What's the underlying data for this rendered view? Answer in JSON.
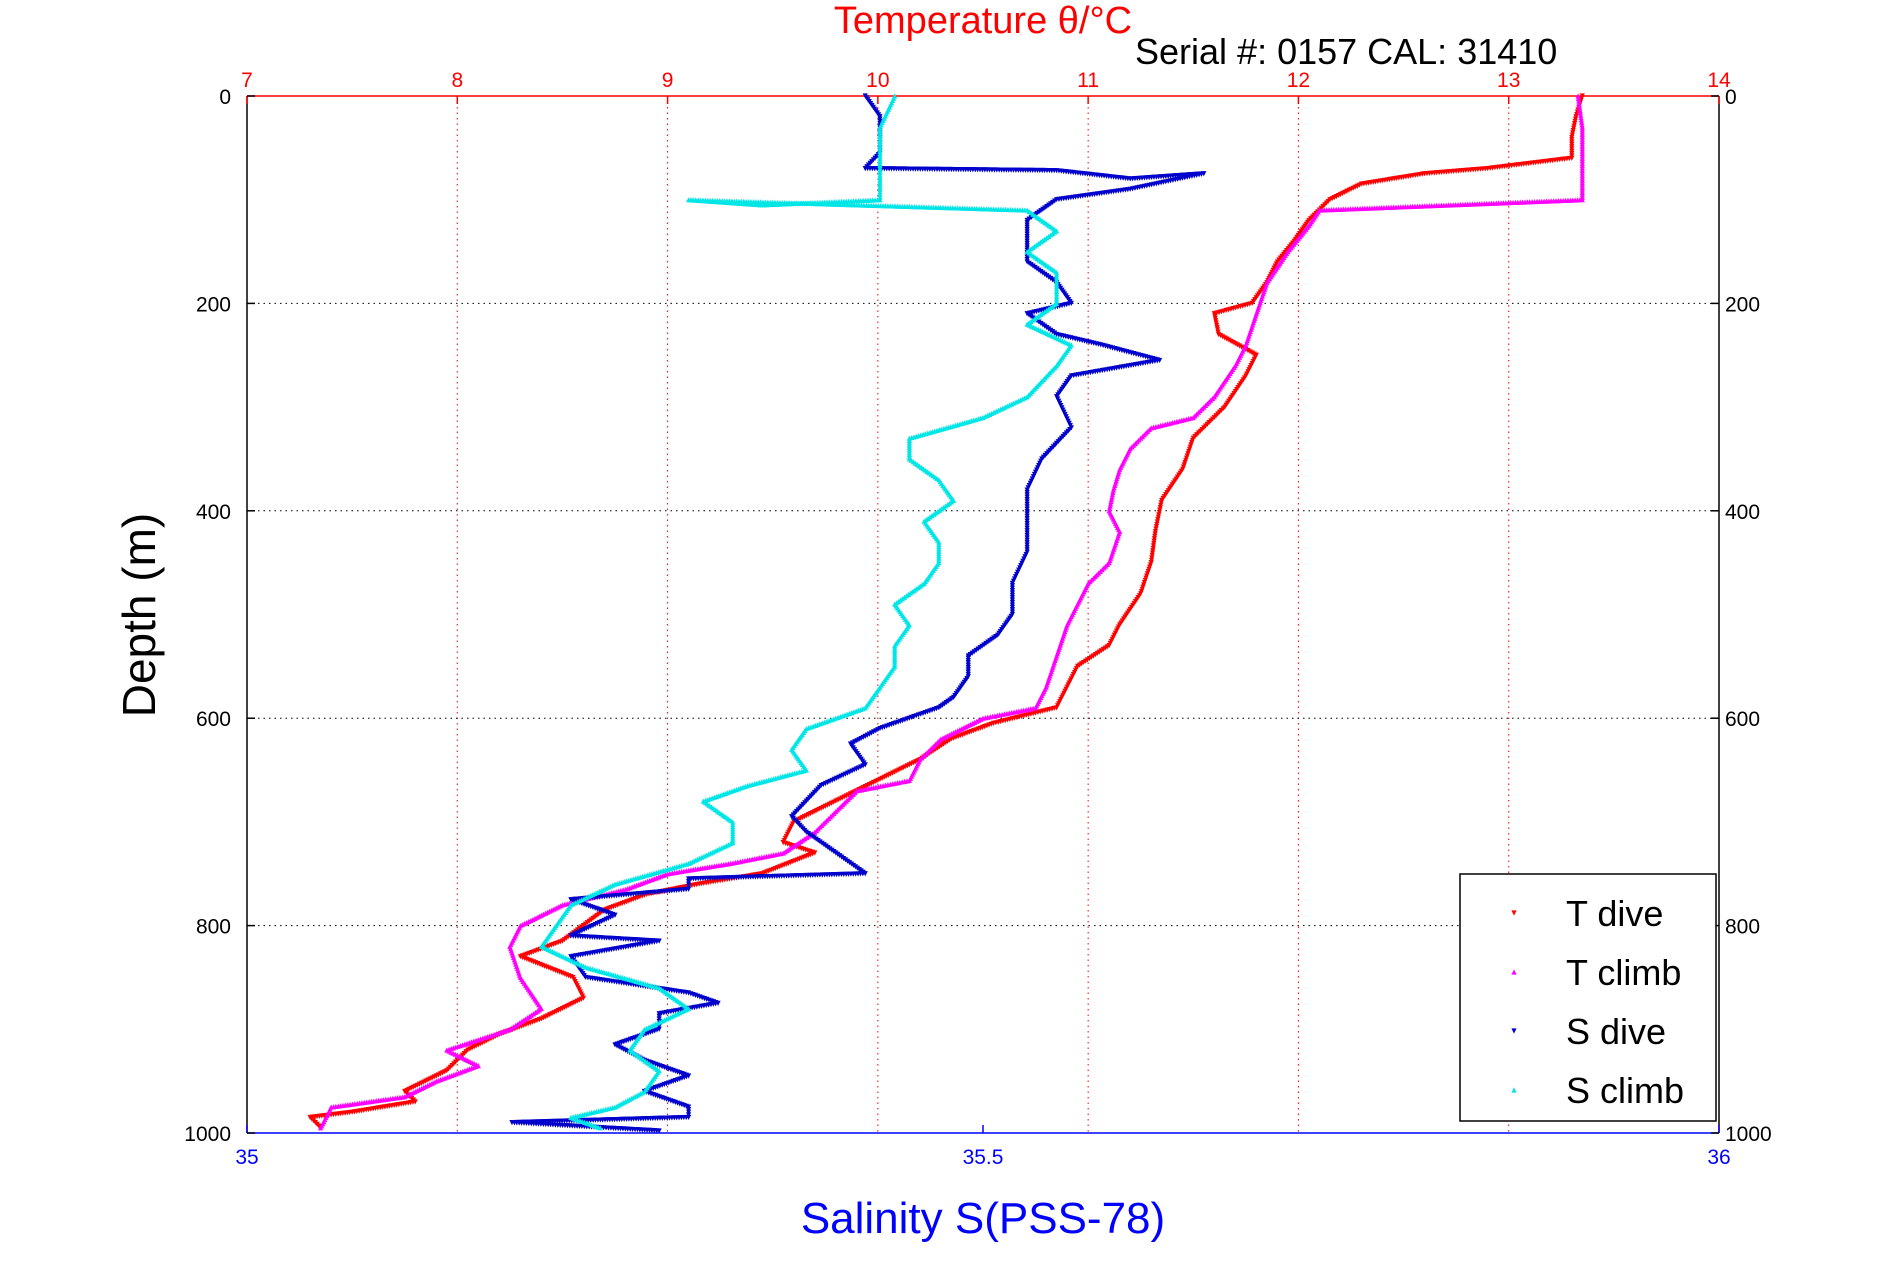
{
  "chart_data": {
    "type": "scatter",
    "title_top": "Temperature θ/°C",
    "serial_text": "Serial #: 0157  CAL: 31410",
    "xlabel_bottom": "Salinity S(PSS-78)",
    "ylabel": "Depth (m)",
    "colors": {
      "temperature_axis": "#ff0000",
      "salinity_axis": "#0000ff",
      "T_dive": "#ff0000",
      "T_climb": "#ff00ff",
      "S_dive": "#0000cc",
      "S_climb": "#00e5e5"
    },
    "temperature_axis": {
      "range": [
        7,
        14
      ],
      "ticks": [
        "7",
        "8",
        "9",
        "10",
        "11",
        "12",
        "13",
        "14"
      ]
    },
    "salinity_axis": {
      "range": [
        35,
        36
      ],
      "ticks": [
        "35",
        "35.5",
        "36"
      ]
    },
    "depth_axis": {
      "range": [
        0,
        1000
      ],
      "ticks": [
        "0",
        "200",
        "400",
        "600",
        "800",
        "1000"
      ]
    },
    "legend": [
      "T dive",
      "T climb",
      "S dive",
      "S climb"
    ],
    "series": [
      {
        "name": "T dive",
        "axis": "temperature",
        "points": [
          [
            13.35,
            0
          ],
          [
            13.32,
            20
          ],
          [
            13.3,
            40
          ],
          [
            13.3,
            60
          ],
          [
            12.9,
            70
          ],
          [
            12.6,
            75
          ],
          [
            12.3,
            85
          ],
          [
            12.15,
            100
          ],
          [
            12.05,
            120
          ],
          [
            11.98,
            140
          ],
          [
            11.9,
            160
          ],
          [
            11.85,
            180
          ],
          [
            11.78,
            200
          ],
          [
            11.6,
            210
          ],
          [
            11.62,
            230
          ],
          [
            11.8,
            250
          ],
          [
            11.75,
            270
          ],
          [
            11.65,
            300
          ],
          [
            11.5,
            330
          ],
          [
            11.45,
            360
          ],
          [
            11.35,
            390
          ],
          [
            11.32,
            420
          ],
          [
            11.3,
            450
          ],
          [
            11.25,
            480
          ],
          [
            11.15,
            510
          ],
          [
            11.1,
            530
          ],
          [
            10.95,
            550
          ],
          [
            10.9,
            570
          ],
          [
            10.85,
            590
          ],
          [
            10.55,
            605
          ],
          [
            10.35,
            620
          ],
          [
            10.2,
            640
          ],
          [
            10.0,
            660
          ],
          [
            9.8,
            680
          ],
          [
            9.6,
            700
          ],
          [
            9.55,
            720
          ],
          [
            9.7,
            730
          ],
          [
            9.45,
            750
          ],
          [
            9.15,
            760
          ],
          [
            8.9,
            770
          ],
          [
            8.7,
            785
          ],
          [
            8.6,
            800
          ],
          [
            8.5,
            815
          ],
          [
            8.3,
            830
          ],
          [
            8.55,
            850
          ],
          [
            8.6,
            870
          ],
          [
            8.4,
            890
          ],
          [
            8.2,
            905
          ],
          [
            8.05,
            920
          ],
          [
            7.95,
            940
          ],
          [
            7.75,
            960
          ],
          [
            7.8,
            970
          ],
          [
            7.5,
            980
          ],
          [
            7.3,
            985
          ],
          [
            7.35,
            995
          ]
        ]
      },
      {
        "name": "T climb",
        "axis": "temperature",
        "points": [
          [
            13.33,
            0
          ],
          [
            13.35,
            30
          ],
          [
            13.35,
            60
          ],
          [
            13.35,
            100
          ],
          [
            12.1,
            110
          ],
          [
            12.05,
            125
          ],
          [
            11.95,
            150
          ],
          [
            11.85,
            180
          ],
          [
            11.8,
            210
          ],
          [
            11.75,
            240
          ],
          [
            11.7,
            260
          ],
          [
            11.6,
            290
          ],
          [
            11.5,
            310
          ],
          [
            11.3,
            320
          ],
          [
            11.2,
            340
          ],
          [
            11.15,
            360
          ],
          [
            11.12,
            380
          ],
          [
            11.1,
            400
          ],
          [
            11.15,
            420
          ],
          [
            11.1,
            450
          ],
          [
            11.0,
            470
          ],
          [
            10.95,
            490
          ],
          [
            10.9,
            510
          ],
          [
            10.85,
            540
          ],
          [
            10.8,
            570
          ],
          [
            10.75,
            590
          ],
          [
            10.5,
            600
          ],
          [
            10.3,
            620
          ],
          [
            10.2,
            640
          ],
          [
            10.15,
            660
          ],
          [
            9.9,
            670
          ],
          [
            9.8,
            690
          ],
          [
            9.7,
            710
          ],
          [
            9.55,
            730
          ],
          [
            9.3,
            740
          ],
          [
            9.0,
            750
          ],
          [
            8.8,
            765
          ],
          [
            8.5,
            780
          ],
          [
            8.3,
            800
          ],
          [
            8.25,
            820
          ],
          [
            8.3,
            850
          ],
          [
            8.4,
            880
          ],
          [
            8.25,
            900
          ],
          [
            8.1,
            910
          ],
          [
            7.95,
            920
          ],
          [
            8.1,
            935
          ],
          [
            7.9,
            950
          ],
          [
            7.75,
            965
          ],
          [
            7.4,
            975
          ],
          [
            7.35,
            995
          ]
        ]
      },
      {
        "name": "S dive",
        "axis": "salinity",
        "points": [
          [
            35.42,
            0
          ],
          [
            35.43,
            20
          ],
          [
            35.43,
            40
          ],
          [
            35.43,
            55
          ],
          [
            35.42,
            70
          ],
          [
            35.55,
            72
          ],
          [
            35.6,
            80
          ],
          [
            35.65,
            75
          ],
          [
            35.6,
            90
          ],
          [
            35.55,
            100
          ],
          [
            35.53,
            120
          ],
          [
            35.53,
            140
          ],
          [
            35.53,
            160
          ],
          [
            35.55,
            180
          ],
          [
            35.56,
            200
          ],
          [
            35.53,
            210
          ],
          [
            35.55,
            230
          ],
          [
            35.58,
            240
          ],
          [
            35.62,
            255
          ],
          [
            35.56,
            270
          ],
          [
            35.55,
            290
          ],
          [
            35.56,
            320
          ],
          [
            35.54,
            350
          ],
          [
            35.53,
            380
          ],
          [
            35.53,
            410
          ],
          [
            35.53,
            440
          ],
          [
            35.52,
            470
          ],
          [
            35.52,
            500
          ],
          [
            35.51,
            520
          ],
          [
            35.49,
            540
          ],
          [
            35.49,
            560
          ],
          [
            35.48,
            580
          ],
          [
            35.47,
            590
          ],
          [
            35.45,
            600
          ],
          [
            35.43,
            610
          ],
          [
            35.41,
            625
          ],
          [
            35.42,
            645
          ],
          [
            35.39,
            665
          ],
          [
            35.38,
            680
          ],
          [
            35.37,
            695
          ],
          [
            35.38,
            710
          ],
          [
            35.4,
            730
          ],
          [
            35.42,
            750
          ],
          [
            35.3,
            755
          ],
          [
            35.3,
            765
          ],
          [
            35.22,
            775
          ],
          [
            35.25,
            790
          ],
          [
            35.22,
            810
          ],
          [
            35.28,
            815
          ],
          [
            35.22,
            830
          ],
          [
            35.23,
            850
          ],
          [
            35.3,
            865
          ],
          [
            35.32,
            875
          ],
          [
            35.28,
            885
          ],
          [
            35.28,
            900
          ],
          [
            35.25,
            915
          ],
          [
            35.27,
            930
          ],
          [
            35.3,
            945
          ],
          [
            35.27,
            960
          ],
          [
            35.3,
            975
          ],
          [
            35.3,
            985
          ],
          [
            35.18,
            990
          ],
          [
            35.28,
            998
          ]
        ]
      },
      {
        "name": "S climb",
        "axis": "salinity",
        "points": [
          [
            35.44,
            0
          ],
          [
            35.43,
            30
          ],
          [
            35.43,
            60
          ],
          [
            35.43,
            90
          ],
          [
            35.43,
            100
          ],
          [
            35.35,
            105
          ],
          [
            35.3,
            100
          ],
          [
            35.53,
            110
          ],
          [
            35.55,
            130
          ],
          [
            35.53,
            150
          ],
          [
            35.55,
            170
          ],
          [
            35.55,
            200
          ],
          [
            35.53,
            220
          ],
          [
            35.56,
            240
          ],
          [
            35.55,
            260
          ],
          [
            35.53,
            290
          ],
          [
            35.5,
            310
          ],
          [
            35.45,
            330
          ],
          [
            35.45,
            350
          ],
          [
            35.47,
            370
          ],
          [
            35.48,
            390
          ],
          [
            35.46,
            410
          ],
          [
            35.47,
            430
          ],
          [
            35.47,
            450
          ],
          [
            35.46,
            470
          ],
          [
            35.44,
            490
          ],
          [
            35.45,
            510
          ],
          [
            35.44,
            530
          ],
          [
            35.44,
            550
          ],
          [
            35.43,
            570
          ],
          [
            35.42,
            590
          ],
          [
            35.38,
            610
          ],
          [
            35.37,
            630
          ],
          [
            35.38,
            650
          ],
          [
            35.34,
            665
          ],
          [
            35.31,
            680
          ],
          [
            35.33,
            700
          ],
          [
            35.33,
            720
          ],
          [
            35.3,
            740
          ],
          [
            35.25,
            760
          ],
          [
            35.22,
            780
          ],
          [
            35.21,
            800
          ],
          [
            35.2,
            820
          ],
          [
            35.23,
            840
          ],
          [
            35.28,
            860
          ],
          [
            35.3,
            880
          ],
          [
            35.27,
            900
          ],
          [
            35.26,
            920
          ],
          [
            35.28,
            940
          ],
          [
            35.27,
            960
          ],
          [
            35.25,
            975
          ],
          [
            35.22,
            985
          ],
          [
            35.24,
            995
          ]
        ]
      }
    ]
  }
}
